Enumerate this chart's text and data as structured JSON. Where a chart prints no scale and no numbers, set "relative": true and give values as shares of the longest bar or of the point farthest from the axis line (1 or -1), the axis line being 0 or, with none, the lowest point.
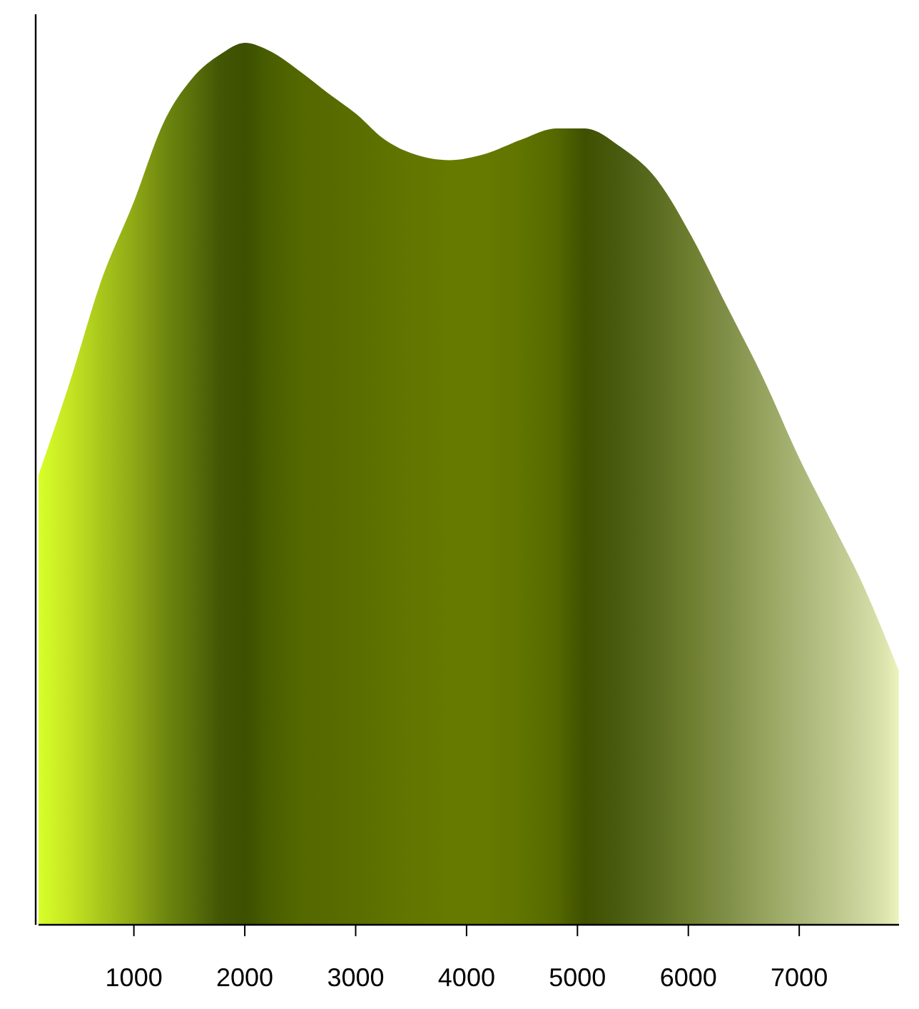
{
  "chart_data": {
    "type": "area",
    "relative": true,
    "xlim": [
      140,
      7900
    ],
    "xticks": [
      1000,
      2000,
      3000,
      4000,
      5000,
      6000,
      7000
    ],
    "x": [
      140,
      434,
      691,
      1000,
      1270,
      1528,
      1781,
      2000,
      2236,
      2493,
      2750,
      3008,
      3265,
      3523,
      3844,
      4166,
      4488,
      4810,
      5067,
      5389,
      5710,
      6032,
      6353,
      6675,
      6997,
      7319,
      7577,
      7770,
      7898
    ],
    "series": [
      {
        "values": [
          0.51,
          0.62,
          0.725,
          0.82,
          0.91,
          0.96,
          0.987,
          1,
          0.99,
          0.968,
          0.943,
          0.919,
          0.89,
          0.874,
          0.867,
          0.874,
          0.89,
          0.903,
          0.903,
          0.882,
          0.846,
          0.78,
          0.7,
          0.62,
          0.53,
          0.45,
          0.385,
          0.328,
          0.288
        ],
        "colors": [
          "#d8ff2a",
          "#c4e322",
          "#aac81c",
          "#8fa816",
          "#6f880f",
          "#5a700a",
          "#425604",
          "#3c5000",
          "#4a5e00",
          "#546800",
          "#566a00",
          "#5a6e00",
          "#5e7200",
          "#627600",
          "#667a00",
          "#667a00",
          "#607400",
          "#546800",
          "#3f5000",
          "#4a5c10",
          "#5a6c20",
          "#6f7f30",
          "#808f48",
          "#95a35e",
          "#a8b576",
          "#bcc68c",
          "#cdd69e",
          "#dde4ae",
          "#ecf3bc"
        ]
      }
    ]
  }
}
